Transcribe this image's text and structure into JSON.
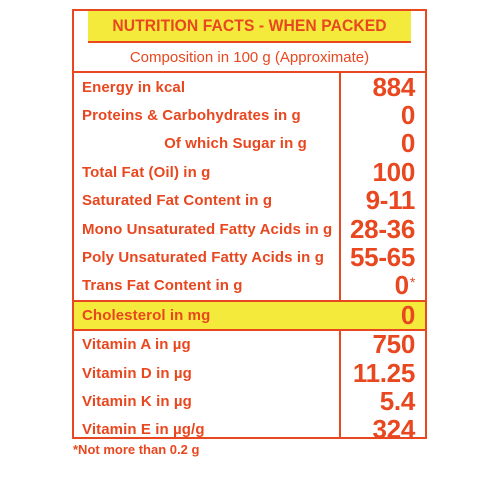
{
  "header": {
    "title": "NUTRITION FACTS - WHEN PACKED"
  },
  "subheader": {
    "text": "Composition in 100 g (Approximate)"
  },
  "rows": [
    {
      "label": "Energy in kcal",
      "value": "884"
    },
    {
      "label": "Proteins & Carbohydrates in g",
      "value": "0"
    },
    {
      "label": "Of which Sugar in g",
      "value": "0"
    },
    {
      "label": "Total Fat (Oil) in g",
      "value": "100"
    },
    {
      "label": "Saturated Fat Content in g",
      "value": "9-11"
    },
    {
      "label": "Mono Unsaturated Fatty Acids in g",
      "value": "28-36"
    },
    {
      "label": "Poly Unsaturated Fatty Acids in g",
      "value": "55-65"
    },
    {
      "label": "Trans Fat Content in g",
      "value": "0",
      "mark": "*"
    },
    {
      "label": "Cholesterol in mg",
      "value": "0"
    },
    {
      "label": "Vitamin A in µg",
      "value": "750"
    },
    {
      "label": "Vitamin D in µg",
      "value": "11.25"
    },
    {
      "label": "Vitamin K in µg",
      "value": "5.4"
    },
    {
      "label": "Vitamin E in µg/g",
      "value": "324"
    }
  ],
  "footnote": "*Not more than 0.2 g",
  "colors": {
    "accent": "#e8471f",
    "highlight": "#f3ea3c"
  }
}
